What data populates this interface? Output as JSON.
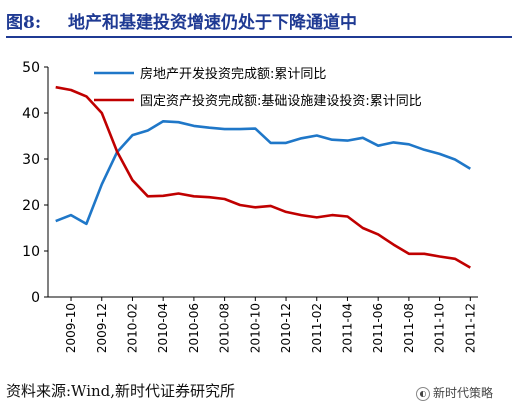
{
  "header": {
    "figure_label": "图8:",
    "title": "地产和基建投资增速仍处于下降通道中"
  },
  "footer": {
    "source": "资料来源:Wind,新时代证券研究所",
    "watermark": "新时代策略"
  },
  "chart_data": {
    "type": "line",
    "title": "地产和基建投资增速仍处于下降通道中",
    "xlabel": "",
    "ylabel": "",
    "ylim": [
      0,
      50
    ],
    "yticks": [
      0,
      10,
      20,
      30,
      40,
      50
    ],
    "x_tick_labels": [
      "2009-10",
      "2009-12",
      "2010-02",
      "2010-04",
      "2010-06",
      "2010-08",
      "2010-10",
      "2010-12",
      "2011-02",
      "2011-04",
      "2011-06",
      "2011-08",
      "2011-10",
      "2011-12"
    ],
    "grid": false,
    "legend_position": "top",
    "x": [
      "2009-09",
      "2009-10",
      "2009-11",
      "2009-12",
      "2010-01",
      "2010-02",
      "2010-03",
      "2010-04",
      "2010-05",
      "2010-06",
      "2010-07",
      "2010-08",
      "2010-09",
      "2010-10",
      "2010-11",
      "2010-12",
      "2011-01",
      "2011-02",
      "2011-03",
      "2011-04",
      "2011-05",
      "2011-06",
      "2011-07",
      "2011-08",
      "2011-09",
      "2011-10",
      "2011-11",
      "2011-12"
    ],
    "series": [
      {
        "name": "房地产开发投资完成额:累计同比",
        "color": "#1f77c8",
        "values": [
          16.5,
          17.8,
          15.9,
          24.5,
          31.5,
          35.2,
          36.2,
          38.2,
          38.0,
          37.2,
          36.8,
          36.5,
          36.5,
          36.6,
          33.5,
          33.5,
          34.5,
          35.1,
          34.2,
          34.0,
          34.6,
          32.9,
          33.6,
          33.2,
          32.0,
          31.1,
          29.9,
          27.9
        ]
      },
      {
        "name": "固定资产投资完成额:基础设施建设投资:累计同比",
        "color": "#c00000",
        "values": [
          45.6,
          45.0,
          43.6,
          40.0,
          31.6,
          25.4,
          21.9,
          22.0,
          22.5,
          21.9,
          21.7,
          21.3,
          20.0,
          19.5,
          19.8,
          18.5,
          17.8,
          17.3,
          17.8,
          17.5,
          15.0,
          13.6,
          11.4,
          9.4,
          9.4,
          8.8,
          8.3,
          6.4
        ]
      }
    ]
  }
}
